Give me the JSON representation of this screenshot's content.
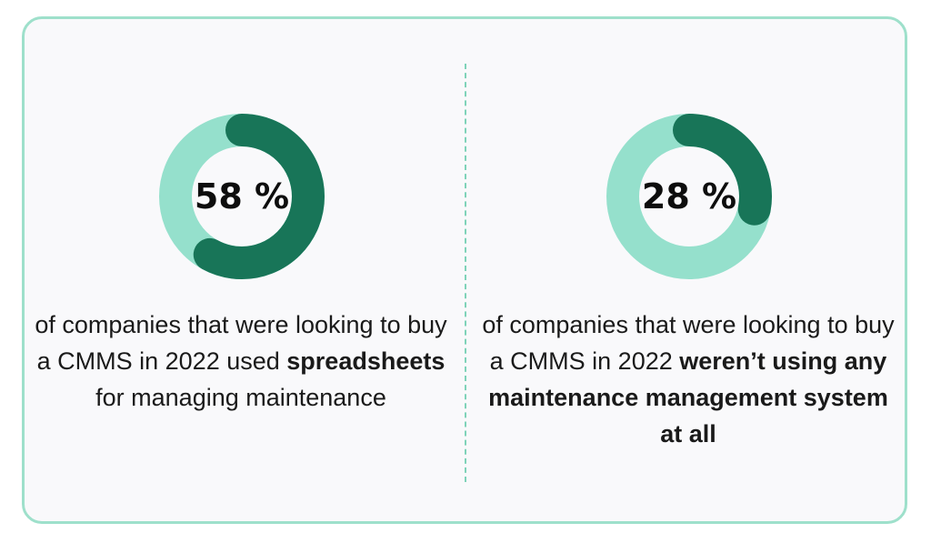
{
  "colors": {
    "ring_track": "#95e0cc",
    "ring_fill": "#187558",
    "border": "#9ee0cb",
    "divider": "#7fd3b9"
  },
  "chart_data": [
    {
      "type": "pie",
      "value": 58,
      "label": "58 %",
      "caption": {
        "lead": "of companies that were looking to buy a CMMS in 2022 used",
        "bold": "spreadsheets",
        "tail": "for managing maintenance"
      }
    },
    {
      "type": "pie",
      "value": 28,
      "label": "28 %",
      "caption": {
        "lead": "of companies that were looking to buy a CMMS in 2022",
        "bold": "weren’t using any maintenance management system at all",
        "tail": ""
      }
    }
  ]
}
